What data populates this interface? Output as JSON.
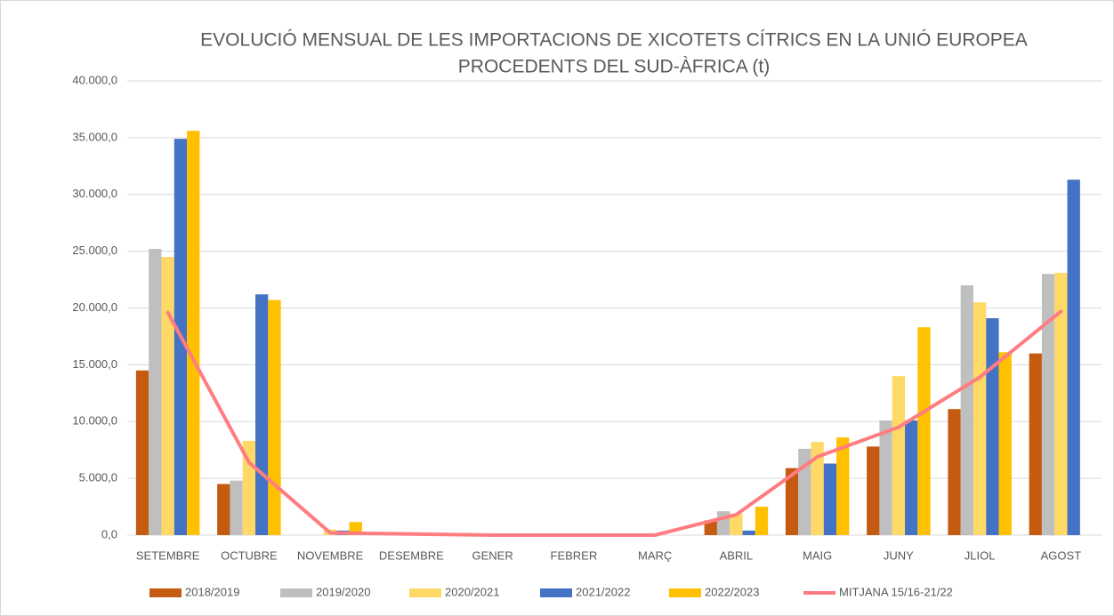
{
  "chart_data": {
    "type": "bar",
    "title": [
      "EVOLUCIÓ MENSUAL DE LES IMPORTACIONS DE XICOTETS CÍTRICS EN LA UNIÓ EUROPEA",
      "PROCEDENTS DEL SUD-ÀFRICA (t)"
    ],
    "categories": [
      "SETEMBRE",
      "OCTUBRE",
      "NOVEMBRE",
      "DESEMBRE",
      "GENER",
      "FEBRER",
      "MARÇ",
      "ABRIL",
      "MAIG",
      "JUNY",
      "JLIOL",
      "AGOST"
    ],
    "series": [
      {
        "name": "2018/2019",
        "color": "#c55a11",
        "values": [
          14500,
          4500,
          0,
          0,
          0,
          0,
          0,
          1300,
          5900,
          7800,
          11100,
          16000
        ]
      },
      {
        "name": "2019/2020",
        "color": "#bfbfbf",
        "values": [
          25200,
          4800,
          0,
          0,
          0,
          0,
          0,
          2100,
          7600,
          10100,
          22000,
          23000
        ]
      },
      {
        "name": "2020/2021",
        "color": "#ffd966",
        "values": [
          24500,
          8300,
          500,
          0,
          0,
          0,
          0,
          1900,
          8200,
          14000,
          20500,
          23100
        ]
      },
      {
        "name": "2021/2022",
        "color": "#4472c4",
        "values": [
          34900,
          21200,
          400,
          100,
          0,
          0,
          0,
          400,
          6300,
          10100,
          19100,
          31300
        ]
      },
      {
        "name": "2022/2023",
        "color": "#ffc000",
        "values": [
          35600,
          20700,
          1150,
          0,
          0,
          0,
          0,
          2500,
          8600,
          18300,
          16100,
          null
        ]
      },
      {
        "name": "MITJANA 15/16-21/22",
        "color": "#ff7c80",
        "type": "line",
        "values": [
          19600,
          6400,
          200,
          100,
          0,
          0,
          0,
          1800,
          6900,
          9500,
          13900,
          19700
        ]
      }
    ],
    "ylim": [
      0,
      40000
    ],
    "yticks": [
      {
        "value": 0,
        "label": "0,0"
      },
      {
        "value": 5000,
        "label": "5.000,0"
      },
      {
        "value": 10000,
        "label": "10.000,0"
      },
      {
        "value": 15000,
        "label": "15.000,0"
      },
      {
        "value": 20000,
        "label": "20.000,0"
      },
      {
        "value": 25000,
        "label": "25.000,0"
      },
      {
        "value": 30000,
        "label": "30.000,0"
      },
      {
        "value": 35000,
        "label": "35.000,0"
      },
      {
        "value": 40000,
        "label": "40.000,0"
      }
    ],
    "grid": true,
    "legend": "bottom"
  }
}
